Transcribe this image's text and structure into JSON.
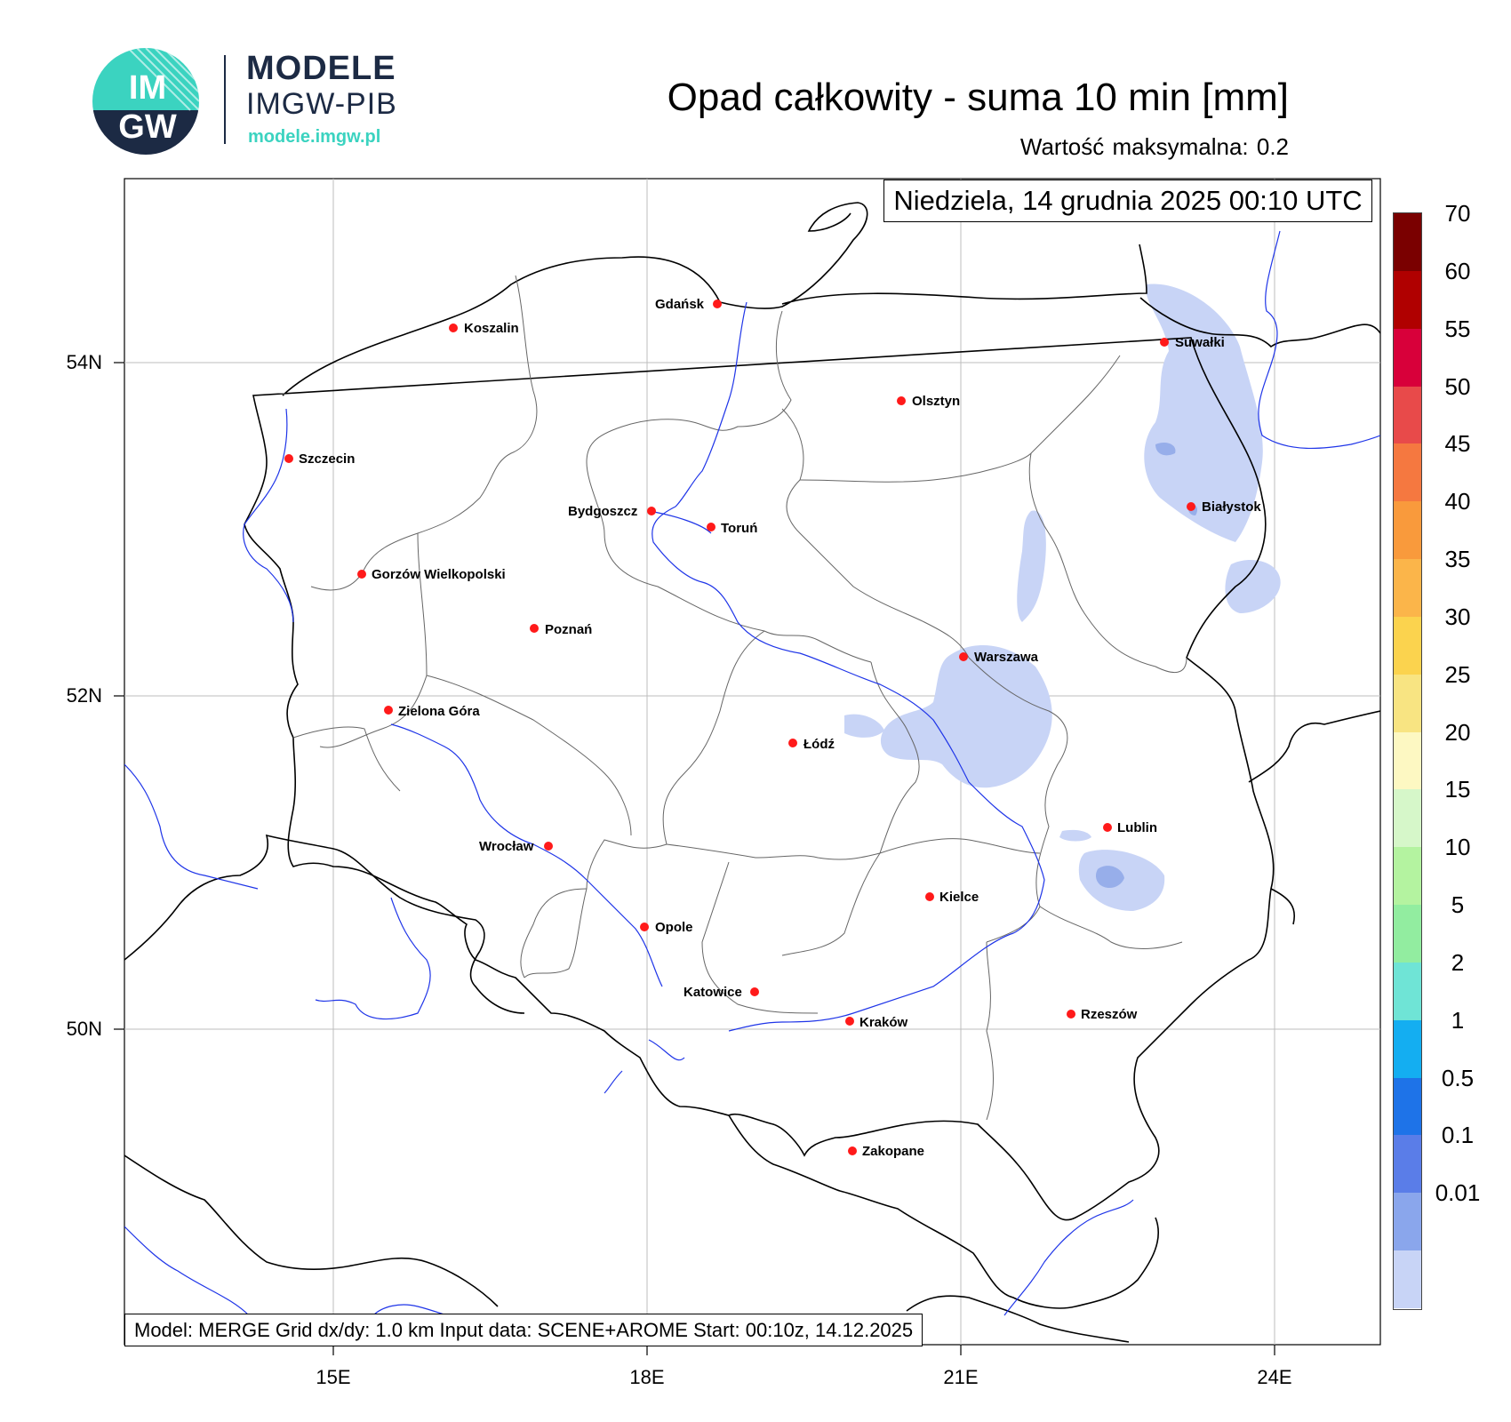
{
  "logo": {
    "line1": "MODELE",
    "line2": "IMGW-PIB",
    "url": "modele.imgw.pl",
    "circle_text_top": "IM",
    "circle_text_bottom": "GW"
  },
  "title": "Opad całkowity - suma 10 min [mm]",
  "max_value": "Wartość maksymalna:   0.2",
  "datetime": "Niedziela, 14 grudnia 2025 00:10 UTC",
  "footer": "Model: MERGE   Grid dx/dy: 1.0 km   Input data: SCENE+AROME   Start: 00:10z, 14.12.2025",
  "lat_labels": [
    "54N",
    "52N",
    "50N"
  ],
  "lon_labels": [
    "15E",
    "18E",
    "21E",
    "24E"
  ],
  "cities": [
    "Gdańsk",
    "Koszalin",
    "Suwałki",
    "Olsztyn",
    "Szczecin",
    "Białystok",
    "Bydgoszcz",
    "Toruń",
    "Gorzów Wielkopolski",
    "Poznań",
    "Warszawa",
    "Zielona Góra",
    "Łódź",
    "Lublin",
    "Wrocław",
    "Kielce",
    "Opole",
    "Katowice",
    "Rzeszów",
    "Kraków",
    "Zakopane"
  ],
  "colorbar": {
    "labels": [
      "70",
      "60",
      "55",
      "50",
      "45",
      "40",
      "35",
      "30",
      "25",
      "20",
      "15",
      "10",
      "5",
      "2",
      "1",
      "0.5",
      "0.1",
      "0.01"
    ],
    "colors": [
      "#7a0000",
      "#b00000",
      "#d8003a",
      "#e84a4a",
      "#f57840",
      "#f99a3c",
      "#fbb54a",
      "#fbd34e",
      "#f8e482",
      "#fdf8c2",
      "#d6f7c9",
      "#b4f3a0",
      "#92eda0",
      "#6fe4d6",
      "#14aef1",
      "#1e73e8",
      "#5a7de8",
      "#8aa6ec",
      "#c8d4f6"
    ]
  },
  "colors": {
    "precip_light": "#c8d4f6",
    "precip_medium": "#97aeea",
    "border": "#000000",
    "river": "#1f35e8",
    "city": "#ff0000",
    "logo_teal": "#3bd3c0",
    "logo_navy": "#1c2a44"
  }
}
